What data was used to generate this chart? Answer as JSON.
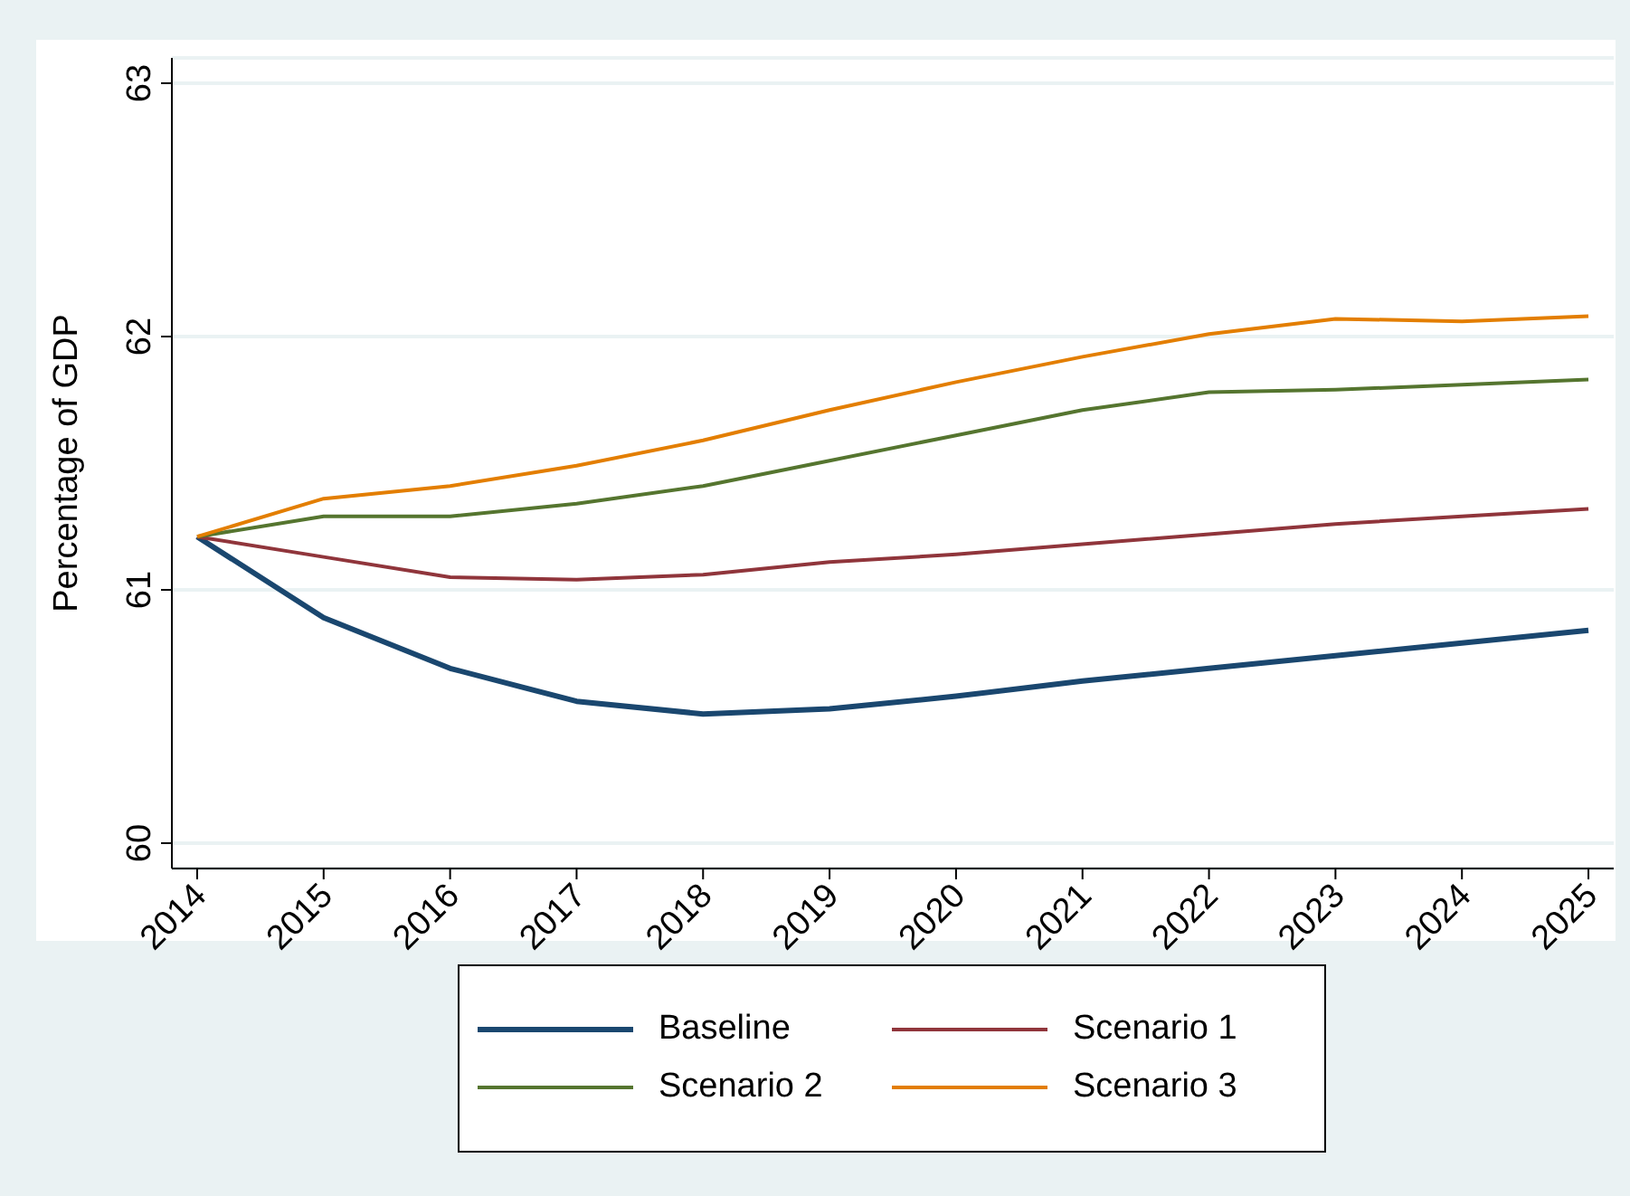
{
  "chart_data": {
    "type": "line",
    "ylabel": "Percentage of GDP",
    "x": [
      2014,
      2015,
      2016,
      2017,
      2018,
      2019,
      2020,
      2021,
      2022,
      2023,
      2024,
      2025
    ],
    "series": [
      {
        "name": "Baseline",
        "color": "#1a476f",
        "values": [
          61.21,
          60.89,
          60.69,
          60.56,
          60.51,
          60.53,
          60.58,
          60.64,
          60.69,
          60.74,
          60.79,
          60.84
        ]
      },
      {
        "name": "Scenario 1",
        "color": "#90353b",
        "values": [
          61.21,
          61.13,
          61.05,
          61.04,
          61.06,
          61.11,
          61.14,
          61.18,
          61.22,
          61.26,
          61.29,
          61.32
        ]
      },
      {
        "name": "Scenario 2",
        "color": "#55752f",
        "values": [
          61.21,
          61.29,
          61.29,
          61.34,
          61.41,
          61.51,
          61.61,
          61.71,
          61.78,
          61.79,
          61.81,
          61.83
        ]
      },
      {
        "name": "Scenario 3",
        "color": "#e37e00",
        "values": [
          61.21,
          61.36,
          61.41,
          61.49,
          61.59,
          61.71,
          61.82,
          61.92,
          62.01,
          62.07,
          62.06,
          62.08
        ]
      }
    ],
    "xlim": [
      2013.8,
      2025.2
    ],
    "xticks": [
      2014,
      2015,
      2016,
      2017,
      2018,
      2019,
      2020,
      2021,
      2022,
      2023,
      2024,
      2025
    ],
    "ylim": [
      59.9,
      63.1
    ],
    "yticks": [
      60,
      61,
      62,
      63
    ],
    "grid": "y",
    "legend": "bottom",
    "marker": "none",
    "line_style": "solid"
  }
}
